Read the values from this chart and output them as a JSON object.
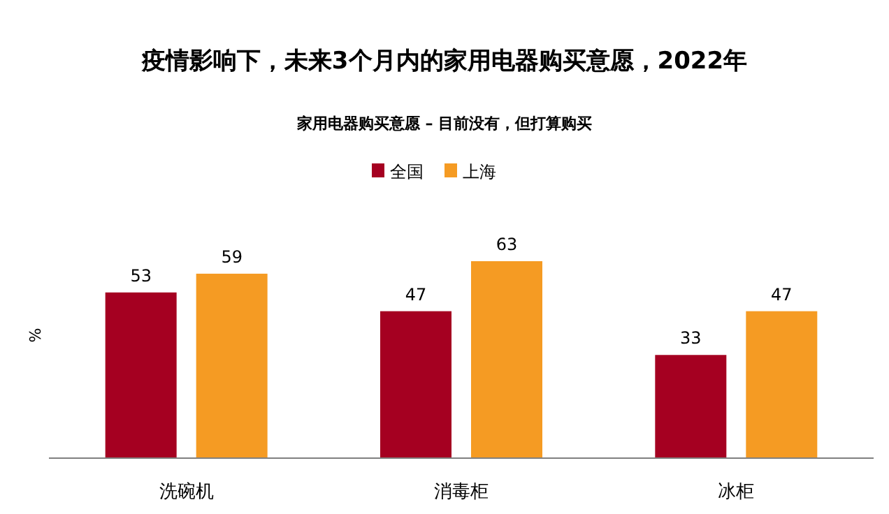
{
  "chart_data": {
    "type": "bar",
    "title": "疫情影响下，未来3个月内的家用电器购买意愿，2022年",
    "subtitle": "家用电器购买意愿 – 目前没有，但打算购买",
    "ylabel": "%",
    "categories": [
      "洗碗机",
      "消毒柜",
      "冰柜"
    ],
    "series": [
      {
        "name": "全国",
        "color": "#a50021",
        "values": [
          53,
          47,
          33
        ]
      },
      {
        "name": "上海",
        "color": "#f59b23",
        "values": [
          59,
          63,
          47
        ]
      }
    ],
    "data_labels": true,
    "legend": "top"
  }
}
